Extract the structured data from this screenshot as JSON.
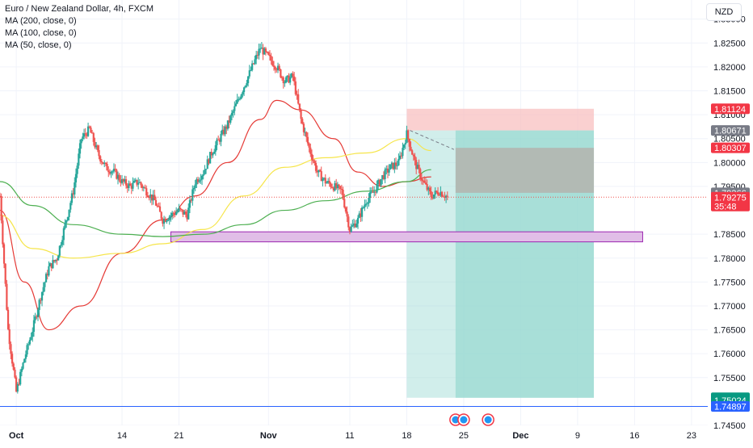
{
  "legend": {
    "title": "Euro / New Zealand Dollar, 4h, FXCM",
    "ma200": "MA (200, close, 0)",
    "ma100": "MA (100, close, 0)",
    "ma50": "MA (50, close, 0)"
  },
  "currency_button": "NZD",
  "colors": {
    "up": "#26a69a",
    "down": "#ef5350",
    "ma200": "#4caf50",
    "ma100": "#f6e54a",
    "ma50": "#e53935",
    "support_zone": "#e1bee7",
    "support_border": "#9c27b0",
    "stop_zone": "#f8bcbc",
    "target_zone": "#99d9d2",
    "hline": "#2962ff"
  },
  "chart_data": {
    "type": "candlestick",
    "symbol": "EURNZD",
    "timeframe": "4h",
    "y_axis": {
      "range": [
        1.745,
        1.834
      ],
      "ticks": [
        "1.83000",
        "1.82500",
        "1.82000",
        "1.81500",
        "1.81000",
        "1.80500",
        "1.80000",
        "1.79500",
        "1.78500",
        "1.78000",
        "1.77500",
        "1.77000",
        "1.76500",
        "1.76000",
        "1.75500",
        "1.74500"
      ]
    },
    "x_axis": {
      "range": [
        "Sep 29",
        "Dec 25"
      ],
      "ticks": [
        {
          "label": "Oct",
          "date": "Oct 1"
        },
        {
          "label": "14",
          "date": "Oct 14"
        },
        {
          "label": "21",
          "date": "Oct 21"
        },
        {
          "label": "Nov",
          "date": "Nov 1"
        },
        {
          "label": "11",
          "date": "Nov 11"
        },
        {
          "label": "18",
          "date": "Nov 18"
        },
        {
          "label": "25",
          "date": "Nov 25"
        },
        {
          "label": "Dec",
          "date": "Dec 2"
        },
        {
          "label": "9",
          "date": "Dec 9"
        },
        {
          "label": "16",
          "date": "Dec 16"
        },
        {
          "label": "23",
          "date": "Dec 23"
        }
      ]
    },
    "price_path": [
      [
        "Sep 29",
        1.793
      ],
      [
        "Sep 30",
        1.765
      ],
      [
        "Oct 1",
        1.752
      ],
      [
        "Oct 2",
        1.759
      ],
      [
        "Oct 3",
        1.765
      ],
      [
        "Oct 4",
        1.772
      ],
      [
        "Oct 5",
        1.778
      ],
      [
        "Oct 6",
        1.78
      ],
      [
        "Oct 7",
        1.787
      ],
      [
        "Oct 8",
        1.794
      ],
      [
        "Oct 9",
        1.805
      ],
      [
        "Oct 10",
        1.807
      ],
      [
        "Oct 11",
        1.802
      ],
      [
        "Oct 12",
        1.799
      ],
      [
        "Oct 13",
        1.798
      ],
      [
        "Oct 14",
        1.796
      ],
      [
        "Oct 15",
        1.795
      ],
      [
        "Oct 16",
        1.796
      ],
      [
        "Oct 17",
        1.794
      ],
      [
        "Oct 18",
        1.792
      ],
      [
        "Oct 19",
        1.788
      ],
      [
        "Oct 20",
        1.789
      ],
      [
        "Oct 21",
        1.79
      ],
      [
        "Oct 22",
        1.789
      ],
      [
        "Oct 23",
        1.796
      ],
      [
        "Oct 24",
        1.798
      ],
      [
        "Oct 25",
        1.802
      ],
      [
        "Oct 26",
        1.805
      ],
      [
        "Oct 27",
        1.808
      ],
      [
        "Oct 28",
        1.812
      ],
      [
        "Oct 29",
        1.816
      ],
      [
        "Oct 30",
        1.82
      ],
      [
        "Oct 31",
        1.824
      ],
      [
        "Nov 1",
        1.822
      ],
      [
        "Nov 2",
        1.82
      ],
      [
        "Nov 3",
        1.817
      ],
      [
        "Nov 4",
        1.818
      ],
      [
        "Nov 5",
        1.809
      ],
      [
        "Nov 6",
        1.803
      ],
      [
        "Nov 7",
        1.798
      ],
      [
        "Nov 8",
        1.796
      ],
      [
        "Nov 9",
        1.795
      ],
      [
        "Nov 10",
        1.794
      ],
      [
        "Nov 11",
        1.786
      ],
      [
        "Nov 12",
        1.788
      ],
      [
        "Nov 13",
        1.792
      ],
      [
        "Nov 14",
        1.794
      ],
      [
        "Nov 15",
        1.797
      ],
      [
        "Nov 16",
        1.799
      ],
      [
        "Nov 17",
        1.8
      ],
      [
        "Nov 18",
        1.806
      ],
      [
        "Nov 19",
        1.8
      ],
      [
        "Nov 20",
        1.796
      ],
      [
        "Nov 21",
        1.793
      ],
      [
        "Nov 22",
        1.794
      ],
      [
        "Nov 23",
        1.7928
      ]
    ],
    "moving_averages": [
      {
        "name": "MA (50, close, 0)",
        "color": "#e53935",
        "points": [
          [
            "Sep 29",
            1.79
          ],
          [
            "Oct 2",
            1.775
          ],
          [
            "Oct 5",
            1.765
          ],
          [
            "Oct 9",
            1.77
          ],
          [
            "Oct 14",
            1.781
          ],
          [
            "Oct 19",
            1.788
          ],
          [
            "Oct 23",
            1.793
          ],
          [
            "Oct 27",
            1.8
          ],
          [
            "Oct 31",
            1.809
          ],
          [
            "Nov 2",
            1.813
          ],
          [
            "Nov 5",
            1.811
          ],
          [
            "Nov 9",
            1.805
          ],
          [
            "Nov 12",
            1.798
          ],
          [
            "Nov 15",
            1.795
          ],
          [
            "Nov 18",
            1.796
          ],
          [
            "Nov 21",
            1.797
          ]
        ]
      },
      {
        "name": "MA (100, close, 0)",
        "color": "#f6e54a",
        "points": [
          [
            "Sep 29",
            1.789
          ],
          [
            "Oct 3",
            1.782
          ],
          [
            "Oct 8",
            1.78
          ],
          [
            "Oct 14",
            1.781
          ],
          [
            "Oct 19",
            1.783
          ],
          [
            "Oct 24",
            1.786
          ],
          [
            "Oct 29",
            1.793
          ],
          [
            "Nov 3",
            1.799
          ],
          [
            "Nov 8",
            1.801
          ],
          [
            "Nov 13",
            1.802
          ],
          [
            "Nov 18",
            1.805
          ],
          [
            "Nov 21",
            1.8025
          ]
        ]
      },
      {
        "name": "MA (200, close, 0)",
        "color": "#4caf50",
        "points": [
          [
            "Sep 29",
            1.796
          ],
          [
            "Oct 3",
            1.791
          ],
          [
            "Oct 8",
            1.787
          ],
          [
            "Oct 14",
            1.785
          ],
          [
            "Oct 19",
            1.7845
          ],
          [
            "Oct 24",
            1.785
          ],
          [
            "Oct 29",
            1.787
          ],
          [
            "Nov 3",
            1.79
          ],
          [
            "Nov 8",
            1.792
          ],
          [
            "Nov 13",
            1.794
          ],
          [
            "Nov 18",
            1.796
          ],
          [
            "Nov 21",
            1.7985
          ]
        ]
      }
    ],
    "support_zone": {
      "from": "Oct 20",
      "to": "Dec 17",
      "low": 1.7834,
      "high": 1.7855
    },
    "short_position": {
      "from": "Nov 18",
      "to": "Dec 11",
      "stop": 1.81124,
      "entry": 1.80671,
      "target": 1.75078,
      "inner_from": "Nov 24",
      "inner_top": 1.80307,
      "inner_bottom": 1.79366
    },
    "horizontal_line": 1.74897,
    "current_price": 1.79275,
    "price_labels": [
      {
        "value": "1.81124",
        "y": 1.81124,
        "style": "red"
      },
      {
        "value": "1.80671",
        "y": 1.80671,
        "style": "gray"
      },
      {
        "value": "1.80307",
        "y": 1.80307,
        "style": "red"
      },
      {
        "value": "1.79366",
        "y": 1.79366,
        "style": "gray"
      },
      {
        "value": "1.79275",
        "sub": "35:48",
        "y": 1.79275,
        "style": "current"
      },
      {
        "value": "1.75078",
        "y": 1.75078,
        "style": "green"
      },
      {
        "value": "1.75024",
        "y": 1.75024,
        "style": "green"
      },
      {
        "value": "1.74897",
        "y": 1.74897,
        "style": "blue"
      }
    ],
    "event_markers": [
      "Nov 24",
      "Nov 25",
      "Nov 28"
    ]
  }
}
